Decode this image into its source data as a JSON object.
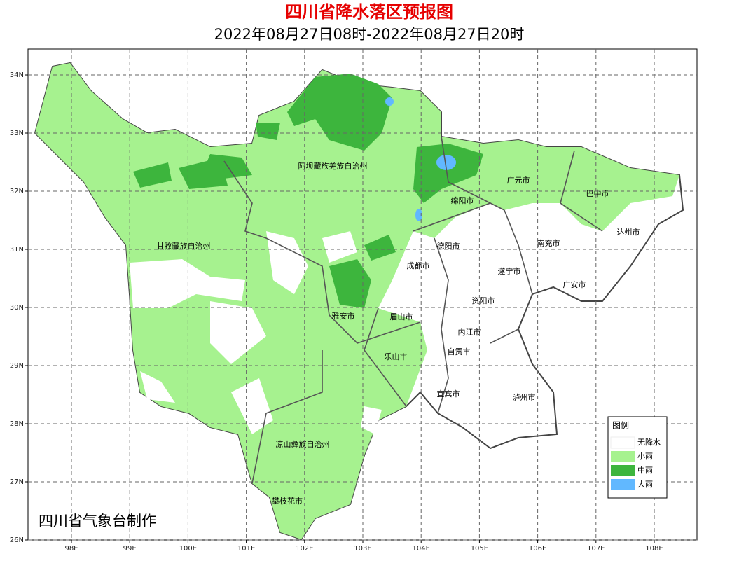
{
  "header": {
    "title": "四川省降水落区预报图",
    "subtitle": "2022年08月27日08时-2022年08月27日20时"
  },
  "map": {
    "xlim": [
      97.255,
      108.733
    ],
    "ylim": [
      26,
      34.446
    ],
    "xticks": [
      {
        "value": 98,
        "label": "98E"
      },
      {
        "value": 99,
        "label": "99E"
      },
      {
        "value": 100,
        "label": "100E"
      },
      {
        "value": 101,
        "label": "101E"
      },
      {
        "value": 102,
        "label": "102E"
      },
      {
        "value": 103,
        "label": "103E"
      },
      {
        "value": 104,
        "label": "104E"
      },
      {
        "value": 105,
        "label": "105E"
      },
      {
        "value": 106,
        "label": "106E"
      },
      {
        "value": 107,
        "label": "107E"
      },
      {
        "value": 108,
        "label": "108E"
      }
    ],
    "yticks": [
      {
        "value": 26,
        "label": "26N"
      },
      {
        "value": 27,
        "label": "27N"
      },
      {
        "value": 28,
        "label": "28N"
      },
      {
        "value": 29,
        "label": "29N"
      },
      {
        "value": 30,
        "label": "30N"
      },
      {
        "value": 31,
        "label": "31N"
      },
      {
        "value": 32,
        "label": "32N"
      },
      {
        "value": 33,
        "label": "33N"
      },
      {
        "value": 34,
        "label": "34N"
      }
    ],
    "labels": [
      "阿坝藏族羌族自治州",
      "甘孜藏族自治州",
      "凉山彝族自治州",
      "攀枝花市",
      "雅安市",
      "眉山市",
      "乐山市",
      "成都市",
      "德阳市",
      "绵阳市",
      "广元市",
      "巴中市",
      "达州市",
      "南充市",
      "遂宁市",
      "广安市",
      "资阳市",
      "内江市",
      "自贡市",
      "宜宾市",
      "泸州市"
    ]
  },
  "legend": {
    "title": "图例",
    "items": [
      {
        "label": "无降水",
        "color": "#ffffff"
      },
      {
        "label": "小雨",
        "color": "#a6f28f"
      },
      {
        "label": "中雨",
        "color": "#3db53d"
      },
      {
        "label": "大雨",
        "color": "#61b8ff"
      }
    ]
  },
  "footer": "四川省气象台制作"
}
